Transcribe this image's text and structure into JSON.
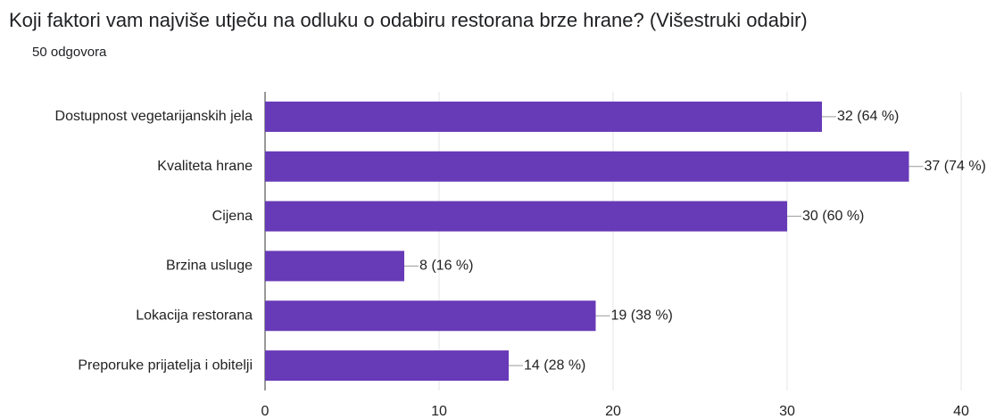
{
  "chart_data": {
    "type": "bar",
    "orientation": "horizontal",
    "title": "Koji faktori vam najviše utječu na odluku o odabiru restorana brze hrane? (Višestruki odabir)",
    "subtitle": "50 odgovora",
    "categories": [
      "Dostupnost vegetarijanskih jela",
      "Kvaliteta hrane",
      "Cijena",
      "Brzina usluge",
      "Lokacija restorana",
      "Preporuke prijatelja i obitelji"
    ],
    "values": [
      32,
      37,
      30,
      8,
      19,
      14
    ],
    "value_labels": [
      "32 (64 %)",
      "37 (74 %)",
      "30 (60 %)",
      "8 (16 %)",
      "19 (38 %)",
      "14 (28 %)"
    ],
    "color": "#673ab7",
    "xlim": [
      0,
      40
    ],
    "xticks": [
      0,
      10,
      20,
      30,
      40
    ],
    "grid": true
  }
}
